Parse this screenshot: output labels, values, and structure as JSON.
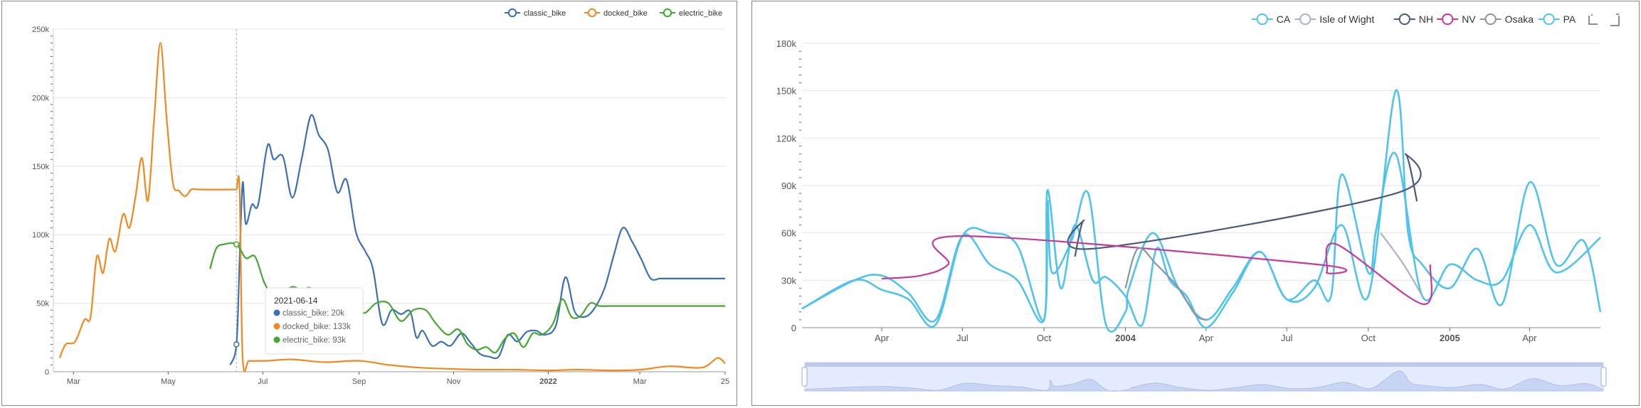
{
  "chart_data": [
    {
      "type": "line",
      "legend": {
        "position": "top-right",
        "items": [
          "classic_bike",
          "docked_bike",
          "electric_bike"
        ]
      },
      "y_ticks": [
        "0",
        "50k",
        "100k",
        "150k",
        "200k",
        "250k"
      ],
      "ylim": [
        0,
        250000
      ],
      "x_ticks": [
        "Mar",
        "May",
        "Jul",
        "Sep",
        "Nov",
        "2022",
        "Mar",
        "25"
      ],
      "grid": true,
      "colors": {
        "classic_bike": "#3b6fb6",
        "docked_bike": "#f0891e",
        "electric_bike": "#43a82f"
      },
      "series": [
        {
          "name": "classic_bike",
          "color": "#3b6fb6",
          "x": [
            "2021-06-10",
            "2021-06-14",
            "2021-06-16",
            "2021-06-18",
            "2021-06-20",
            "2021-06-24",
            "2021-06-28",
            "2021-07-04",
            "2021-07-08",
            "2021-07-14",
            "2021-07-20",
            "2021-07-26",
            "2021-08-01",
            "2021-08-06",
            "2021-08-12",
            "2021-08-18",
            "2021-08-24",
            "2021-08-30",
            "2021-09-05",
            "2021-09-10",
            "2021-09-16",
            "2021-09-22",
            "2021-09-28",
            "2021-10-04",
            "2021-10-08",
            "2021-10-12",
            "2021-10-18",
            "2021-10-24",
            "2021-10-30",
            "2021-11-06",
            "2021-11-12",
            "2021-11-18",
            "2021-11-24",
            "2021-11-30",
            "2021-12-06",
            "2021-12-12",
            "2021-12-18",
            "2021-12-24",
            "2021-12-30",
            "2022-01-06",
            "2022-01-12",
            "2022-01-18",
            "2022-01-24",
            "2022-01-30",
            "2022-02-06",
            "2022-02-12",
            "2022-02-18",
            "2022-02-24",
            "2022-03-02",
            "2022-03-08",
            "2022-03-14",
            "2022-03-20",
            "2022-03-26",
            "2022-03-29",
            "2022-04-02",
            "2022-04-06",
            "2022-04-10",
            "2022-04-14",
            "2022-04-18",
            "2022-04-22",
            "2022-04-25"
          ],
          "values": [
            5000,
            20000,
            80000,
            138000,
            108000,
            122000,
            122000,
            165000,
            155000,
            157000,
            127000,
            155000,
            187000,
            173000,
            162000,
            131000,
            140000,
            102000,
            88000,
            75000,
            35000,
            45000,
            42000,
            44000,
            25000,
            30000,
            19000,
            22000,
            19000,
            28000,
            21000,
            13000,
            11000,
            11000,
            27000,
            22000,
            29000,
            30000,
            27000,
            34000,
            69000,
            44000,
            40000,
            45000,
            60000,
            84000,
            105000,
            95000,
            82000,
            68000,
            68000,
            68000,
            68000,
            68000,
            68000,
            68000,
            68000,
            68000,
            68000,
            68000,
            68000
          ]
        },
        {
          "name": "docked_bike",
          "color": "#f0891e",
          "x": [
            "2021-02-20",
            "2021-02-24",
            "2021-03-02",
            "2021-03-08",
            "2021-03-12",
            "2021-03-16",
            "2021-03-20",
            "2021-03-24",
            "2021-03-28",
            "2021-04-02",
            "2021-04-06",
            "2021-04-10",
            "2021-04-14",
            "2021-04-18",
            "2021-04-22",
            "2021-04-26",
            "2021-04-30",
            "2021-05-04",
            "2021-05-08",
            "2021-05-12",
            "2021-05-16",
            "2021-05-20",
            "2021-05-24",
            "2021-05-30",
            "2021-06-04",
            "2021-06-08",
            "2021-06-12",
            "2021-06-14",
            "2021-06-16",
            "2021-06-18",
            "2021-06-22",
            "2021-06-28",
            "2021-07-04",
            "2021-07-20",
            "2021-08-10",
            "2021-09-01",
            "2021-09-20",
            "2021-10-10",
            "2021-11-01",
            "2021-11-20",
            "2021-12-10",
            "2022-01-01",
            "2022-01-20",
            "2022-02-10",
            "2022-03-01",
            "2022-03-20",
            "2022-04-10",
            "2022-04-20",
            "2022-04-25"
          ],
          "values": [
            10000,
            20000,
            22000,
            38000,
            40000,
            84000,
            72000,
            97000,
            88000,
            115000,
            105000,
            128000,
            156000,
            125000,
            185000,
            240000,
            185000,
            138000,
            132000,
            128000,
            133000,
            133000,
            133000,
            133000,
            133000,
            133000,
            133000,
            133000,
            134000,
            10000,
            8000,
            8000,
            8000,
            9000,
            7000,
            8000,
            5000,
            3000,
            2000,
            1500,
            1500,
            1000,
            1500,
            1000,
            1500,
            4000,
            3000,
            10000,
            6000
          ]
        },
        {
          "name": "electric_bike",
          "color": "#43a82f",
          "x": [
            "2021-05-28",
            "2021-06-01",
            "2021-06-06",
            "2021-06-14",
            "2021-06-20",
            "2021-06-26",
            "2021-07-02",
            "2021-07-08",
            "2021-07-14",
            "2021-07-20",
            "2021-07-26",
            "2021-08-01",
            "2021-08-06",
            "2021-08-12",
            "2021-08-18",
            "2021-08-24",
            "2021-08-30",
            "2021-09-05",
            "2021-09-12",
            "2021-09-20",
            "2021-09-28",
            "2021-10-06",
            "2021-10-14",
            "2021-10-20",
            "2021-10-28",
            "2021-11-04",
            "2021-11-10",
            "2021-11-16",
            "2021-11-22",
            "2021-11-28",
            "2021-12-04",
            "2021-12-10",
            "2021-12-16",
            "2021-12-22",
            "2021-12-28",
            "2022-01-04",
            "2022-01-10",
            "2022-01-16",
            "2022-01-22",
            "2022-01-28",
            "2022-02-03",
            "2022-02-09",
            "2022-02-15",
            "2022-02-21",
            "2022-02-27",
            "2022-03-05",
            "2022-03-11",
            "2022-03-17",
            "2022-03-23",
            "2022-03-29",
            "2022-04-04",
            "2022-04-10",
            "2022-04-16",
            "2022-04-22",
            "2022-04-25"
          ],
          "values": [
            75000,
            90000,
            93000,
            93000,
            83000,
            84000,
            65000,
            55000,
            58000,
            62000,
            60000,
            61000,
            52000,
            50000,
            47000,
            46000,
            45000,
            43000,
            50000,
            50000,
            37000,
            45000,
            45000,
            36000,
            27000,
            31000,
            20000,
            16000,
            18000,
            14000,
            24000,
            28000,
            18000,
            28000,
            27000,
            35000,
            53000,
            40000,
            41000,
            50000,
            48000,
            48000,
            48000,
            48000,
            48000,
            48000,
            48000,
            48000,
            48000,
            48000,
            48000,
            48000,
            48000,
            48000,
            48000
          ]
        }
      ],
      "tooltip": {
        "title": "2021-06-14",
        "rows": [
          "classic_bike: 20k",
          "docked_bike: 133k",
          "electric_bike: 93k"
        ]
      }
    },
    {
      "type": "line",
      "legend": {
        "position": "top-right",
        "items": [
          "CA",
          "Isle of Wight",
          "NH",
          "NV",
          "Osaka",
          "PA"
        ]
      },
      "y_ticks": [
        "0",
        "30k",
        "60k",
        "90k",
        "120k",
        "150k",
        "180k"
      ],
      "ylim": [
        0,
        180000
      ],
      "x_ticks": [
        "Apr",
        "Jul",
        "Oct",
        "2004",
        "Apr",
        "Jul",
        "Oct",
        "2005",
        "Apr"
      ],
      "grid": true,
      "colors": {
        "CA": "#4fc3ee",
        "Isle of Wight": "#a8b4c4",
        "NH": "#4a5a78",
        "NV": "#c43a9a",
        "Osaka": "#8a94a4",
        "PA": "#4fc3ee"
      },
      "toolbox": [
        "zoom-icon",
        "zoom-reset-icon"
      ],
      "data_zoom": {
        "start": 0,
        "end": 100
      },
      "series": [
        {
          "name": "PA",
          "color": "#4fc3ee",
          "x": [
            "2003-01-01",
            "2003-03-01",
            "2003-04-01",
            "2003-05-01",
            "2003-06-01",
            "2003-07-01",
            "2003-08-01",
            "2003-09-01",
            "2003-10-01",
            "2003-10-05",
            "2003-10-10",
            "2003-11-01",
            "2003-11-20",
            "2003-12-10",
            "2004-01-01",
            "2004-01-05",
            "2004-02-01",
            "2004-03-01",
            "2004-04-01",
            "2004-05-01",
            "2004-06-01",
            "2004-07-01",
            "2004-08-01",
            "2004-09-01",
            "2004-10-01",
            "2004-11-01",
            "2004-11-15",
            "2004-12-01",
            "2005-01-01",
            "2005-02-01",
            "2005-03-01",
            "2005-04-01",
            "2005-05-01",
            "2005-06-01",
            "2005-06-20"
          ],
          "values": [
            12000,
            30000,
            33000,
            22000,
            5000,
            58000,
            40000,
            30000,
            5000,
            80000,
            35000,
            55000,
            85000,
            2000,
            10000,
            25000,
            60000,
            25000,
            5000,
            25000,
            48000,
            18000,
            25000,
            65000,
            20000,
            150000,
            60000,
            40000,
            25000,
            50000,
            15000,
            92000,
            40000,
            55000,
            10000
          ]
        },
        {
          "name": "CA",
          "color": "#4fc3ee",
          "x": [
            "2003-01-01",
            "2003-03-01",
            "2003-04-01",
            "2003-05-01",
            "2003-06-01",
            "2003-07-01",
            "2003-08-01",
            "2003-09-01",
            "2003-10-01",
            "2003-10-05",
            "2003-10-20",
            "2003-11-05",
            "2003-11-25",
            "2003-12-10",
            "2004-01-01",
            "2004-01-20",
            "2004-02-05",
            "2004-02-20",
            "2004-03-10",
            "2004-04-01",
            "2004-05-01",
            "2004-06-01",
            "2004-07-01",
            "2004-08-01",
            "2004-08-20",
            "2004-09-01",
            "2004-10-01",
            "2004-10-10",
            "2004-11-01",
            "2004-12-01",
            "2005-01-01",
            "2005-02-01",
            "2005-03-01",
            "2005-04-01",
            "2005-05-01",
            "2005-06-20"
          ],
          "values": [
            12000,
            30000,
            24000,
            18000,
            2000,
            58000,
            60000,
            52000,
            5000,
            87000,
            25000,
            65000,
            30000,
            32000,
            20000,
            2000,
            50000,
            30000,
            20000,
            0,
            22000,
            48000,
            18000,
            30000,
            20000,
            97000,
            35000,
            62000,
            110000,
            20000,
            40000,
            30000,
            30000,
            65000,
            35000,
            57000
          ]
        },
        {
          "name": "NH",
          "color": "#4a5a78",
          "x": [
            "2003-11-05",
            "2003-11-15",
            "2003-11-25",
            "2004-11-01",
            "2004-11-12",
            "2004-11-25"
          ],
          "values": [
            45000,
            68000,
            50000,
            85000,
            110000,
            80000
          ]
        },
        {
          "name": "NV",
          "color": "#c43a9a",
          "x": [
            "2003-04-01",
            "2003-05-15",
            "2003-06-15",
            "2003-07-01",
            "2004-08-05",
            "2004-08-15",
            "2004-08-25",
            "2004-12-01",
            "2004-12-10"
          ],
          "values": [
            31000,
            33000,
            40000,
            58000,
            40000,
            35000,
            53000,
            15000,
            40000
          ]
        },
        {
          "name": "Osaka",
          "color": "#8a94a4",
          "x": [
            "2004-01-01",
            "2004-01-15",
            "2004-02-05",
            "2004-03-01",
            "2004-03-20",
            "2004-04-01"
          ],
          "values": [
            25000,
            50000,
            40000,
            25000,
            8000,
            5000
          ]
        },
        {
          "name": "Isle of Wight",
          "color": "#a8b4c4",
          "x": [
            "2004-10-15",
            "2004-11-10",
            "2004-12-01"
          ],
          "values": [
            60000,
            40000,
            20000
          ]
        }
      ]
    }
  ]
}
